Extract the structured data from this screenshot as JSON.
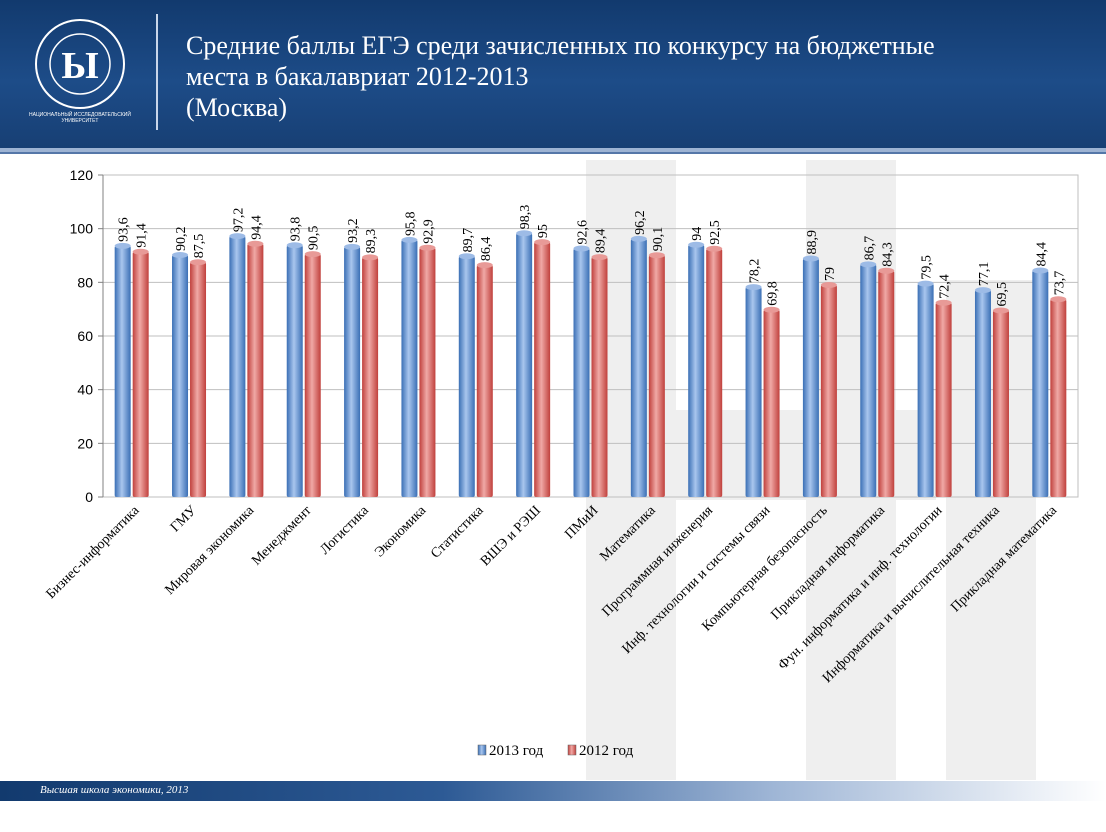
{
  "header": {
    "title_lines": [
      "Средние баллы ЕГЭ среди зачисленных по конкурсу на бюджетные",
      "места в бакалавриат 2012-2013",
      "(Москва)"
    ],
    "logo_text": "НАЦИОНАЛЬНЫЙ ИССЛЕДОВАТЕЛЬСКИЙ УНИВЕРСИТЕТ",
    "logo_ring_text": "ВЫСШАЯ ШКОЛА ЭКОНОМИКИ"
  },
  "footer": {
    "text": "Высшая школа экономики, 2013"
  },
  "colors": {
    "series_2013": "#4f81bd",
    "series_2012": "#c0504d",
    "header": "#1a4580"
  },
  "chart_data": {
    "type": "bar",
    "ylim": [
      0,
      120
    ],
    "yticks": [
      "0",
      "20",
      "40",
      "60",
      "80",
      "100",
      "120"
    ],
    "grid": true,
    "legend_position": "bottom",
    "categories": [
      "Бизнес-информатика",
      "ГМУ",
      "Мировая экономика",
      "Менеджмент",
      "Логистика",
      "Экономика",
      "Статистика",
      "ВШЭ и РЭШ",
      "ПМиИ",
      "Математика",
      "Программная инженерия",
      "Инф. технологии и системы связи",
      "Компьютерная безопасность",
      "Прикладная информатика",
      "Фун. информатика и инф. технологии",
      "Информатика и вычислительная техника",
      "Прикладная математика"
    ],
    "series": [
      {
        "name": "2013 год",
        "values": [
          93.6,
          90.2,
          97.2,
          93.8,
          93.2,
          95.8,
          89.7,
          98.3,
          92.6,
          96.2,
          94,
          78.2,
          88.9,
          86.7,
          79.5,
          77.1,
          84.4
        ],
        "labels": [
          "93,6",
          "90,2",
          "97,2",
          "93,8",
          "93,2",
          "95,8",
          "89,7",
          "98,3",
          "92,6",
          "96,2",
          "94",
          "78,2",
          "88,9",
          "86,7",
          "79,5",
          "77,1",
          "84,4"
        ]
      },
      {
        "name": "2012 год",
        "values": [
          91.4,
          87.5,
          94.4,
          90.5,
          89.3,
          92.9,
          86.4,
          95,
          89.4,
          90.1,
          92.5,
          69.8,
          79,
          84.3,
          72.4,
          69.5,
          73.7
        ],
        "labels": [
          "91,4",
          "87,5",
          "94,4",
          "90,5",
          "89,3",
          "92,9",
          "86,4",
          "95",
          "89,4",
          "90,1",
          "92,5",
          "69,8",
          "79",
          "84,3",
          "72,4",
          "69,5",
          "73,7"
        ]
      }
    ]
  }
}
